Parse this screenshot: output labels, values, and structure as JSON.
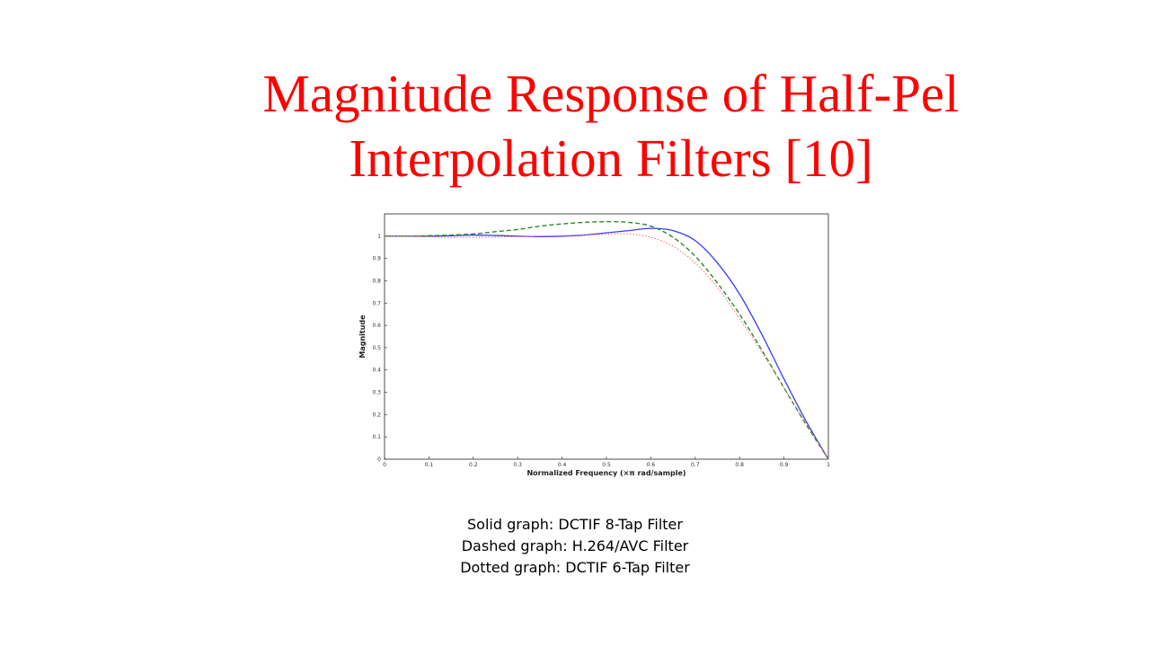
{
  "title": {
    "line1": "Magnitude Response of Half-Pel",
    "line2": "Interpolation Filters [10]"
  },
  "caption": {
    "line1": "Solid graph: DCTIF 8-Tap Filter",
    "line2": "Dashed graph: H.264/AVC Filter",
    "line3": "Dotted graph: DCTIF 6-Tap Filter"
  },
  "chart_data": {
    "type": "line",
    "xlabel": "Normalized Frequency (×π rad/sample)",
    "ylabel": "Magnitude",
    "xlim": [
      0,
      1
    ],
    "ylim": [
      0,
      1.1
    ],
    "grid": false,
    "x_ticks": [
      "0",
      "0.1",
      "0.2",
      "0.3",
      "0.4",
      "0.5",
      "0.6",
      "0.7",
      "0.8",
      "0.9",
      "1"
    ],
    "y_ticks": [
      "0",
      "0.1",
      "0.2",
      "0.3",
      "0.4",
      "0.5",
      "0.6",
      "0.7",
      "0.8",
      "0.9",
      "1"
    ],
    "x": [
      0,
      0.05,
      0.1,
      0.15,
      0.2,
      0.25,
      0.3,
      0.35,
      0.4,
      0.45,
      0.5,
      0.55,
      0.6,
      0.65,
      0.7,
      0.75,
      0.8,
      0.85,
      0.9,
      0.95,
      1.0
    ],
    "series": [
      {
        "style": "solid",
        "color": "#3a3aff",
        "values": [
          1.0,
          1.0,
          1.0,
          1.002,
          1.005,
          1.003,
          1.0,
          0.998,
          1.0,
          1.005,
          1.015,
          1.025,
          1.035,
          1.025,
          0.98,
          0.88,
          0.74,
          0.56,
          0.36,
          0.17,
          0.0
        ]
      },
      {
        "style": "dashed",
        "color": "#2a8a2a",
        "values": [
          1.0,
          1.0,
          1.002,
          1.005,
          1.01,
          1.02,
          1.03,
          1.045,
          1.055,
          1.062,
          1.065,
          1.062,
          1.045,
          0.995,
          0.91,
          0.79,
          0.65,
          0.49,
          0.32,
          0.155,
          0.0
        ]
      },
      {
        "style": "dotted",
        "color": "#ff6666",
        "values": [
          1.0,
          0.999,
          0.997,
          0.995,
          0.995,
          0.996,
          0.998,
          1.0,
          1.002,
          1.005,
          1.008,
          1.01,
          0.995,
          0.955,
          0.88,
          0.77,
          0.63,
          0.48,
          0.32,
          0.16,
          0.0
        ]
      }
    ]
  }
}
